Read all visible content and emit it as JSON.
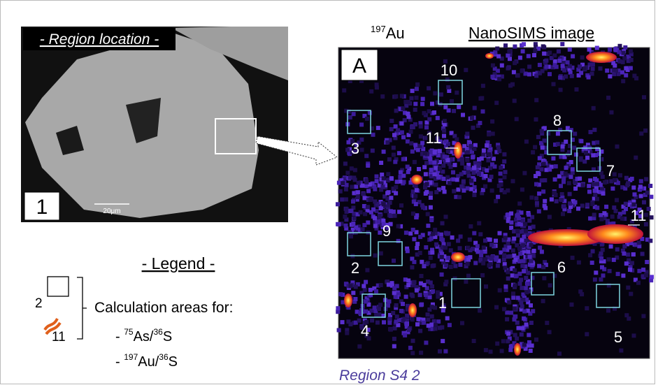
{
  "left_panel": {
    "title": "- Region location -",
    "label": "1",
    "scale_bar": "20μm"
  },
  "right_panel": {
    "isotope_mass": "197",
    "element": "Au",
    "title": "NanoSIMS image",
    "label": "A",
    "areas": [
      "10",
      "3",
      "11",
      "8",
      "7",
      "11",
      "9",
      "2",
      "6",
      "1",
      "4",
      "5"
    ]
  },
  "legend": {
    "title": "- Legend -",
    "square_label": "2",
    "curve_label": "11",
    "text": "Calculation areas for:",
    "items": [
      {
        "prefix": "- ",
        "mass": "75",
        "element": "As/",
        "denom_mass": "36",
        "denom_element": "S"
      },
      {
        "prefix": "- ",
        "mass": "197",
        "element": "Au/",
        "denom_mass": "36",
        "denom_element": "S"
      }
    ]
  },
  "caption": "Region S4 2"
}
